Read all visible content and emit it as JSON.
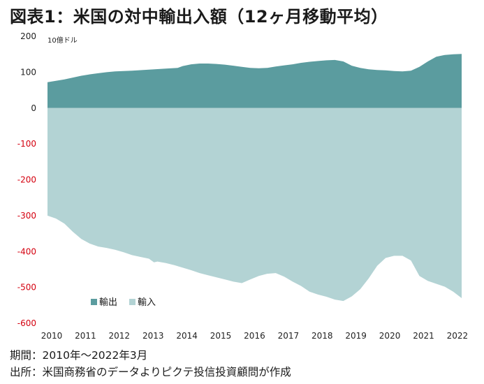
{
  "header": {
    "title": "図表1：米国の対中輸出入額（12ヶ月移動平均）",
    "unit": "10億ドル"
  },
  "footer": {
    "period": "期間：2010年～2022年3月",
    "source": "出所：米国商務省のデータよりピクテ投信投資顧問が作成"
  },
  "colors": {
    "export": "#5b9c9f",
    "import": "#b3d3d4",
    "negative_tick": "#d4000f",
    "positive_tick": "#222222"
  },
  "chart_data": {
    "type": "area",
    "title": "図表1：米国の対中輸出入額（12ヶ月移動平均）",
    "ylabel": "10億ドル",
    "xlabel": "",
    "ylim": [
      -600,
      200
    ],
    "yticks": [
      200,
      100,
      0,
      -100,
      -200,
      -300,
      -400,
      -500,
      -600
    ],
    "ytick_labels": [
      "200",
      "100",
      "0",
      "-100",
      "-200",
      "-300",
      "-400",
      "-500",
      "-600"
    ],
    "xlim": [
      2010,
      2022.25
    ],
    "xticks": [
      2010,
      2011,
      2012,
      2013,
      2014,
      2015,
      2016,
      2017,
      2018,
      2019,
      2020,
      2021,
      2022
    ],
    "xtick_labels": [
      "2010",
      "2011",
      "2012",
      "2013",
      "2014",
      "2015",
      "2016",
      "2017",
      "2018",
      "2019",
      "2020",
      "2021",
      "2022"
    ],
    "grid": false,
    "legend_position": "bottom-left",
    "series": [
      {
        "name": "輸出",
        "x": [
          2010.0,
          2010.25,
          2010.5,
          2010.75,
          2011.0,
          2011.25,
          2011.5,
          2011.75,
          2012.0,
          2012.5,
          2013.0,
          2013.5,
          2013.85,
          2014.0,
          2014.25,
          2014.5,
          2014.75,
          2015.0,
          2015.25,
          2015.5,
          2015.75,
          2016.0,
          2016.25,
          2016.5,
          2016.75,
          2017.0,
          2017.25,
          2017.5,
          2017.75,
          2018.0,
          2018.25,
          2018.5,
          2018.75,
          2019.0,
          2019.25,
          2019.5,
          2019.75,
          2020.0,
          2020.25,
          2020.5,
          2020.75,
          2021.0,
          2021.25,
          2021.5,
          2021.75,
          2022.0,
          2022.25
        ],
        "values": [
          72,
          76,
          80,
          85,
          90,
          94,
          97,
          100,
          102,
          104,
          107,
          110,
          112,
          117,
          122,
          124,
          124,
          123,
          121,
          118,
          115,
          112,
          111,
          112,
          116,
          119,
          122,
          126,
          129,
          131,
          133,
          134,
          130,
          118,
          112,
          108,
          106,
          105,
          103,
          102,
          104,
          115,
          130,
          143,
          148,
          150,
          151
        ]
      },
      {
        "name": "輸入",
        "x": [
          2010.0,
          2010.25,
          2010.5,
          2010.75,
          2011.0,
          2011.25,
          2011.5,
          2011.75,
          2012.0,
          2012.25,
          2012.5,
          2012.75,
          2013.0,
          2013.15,
          2013.25,
          2013.5,
          2013.75,
          2014.0,
          2014.25,
          2014.5,
          2014.75,
          2015.0,
          2015.25,
          2015.5,
          2015.75,
          2016.0,
          2016.25,
          2016.5,
          2016.75,
          2017.0,
          2017.25,
          2017.5,
          2017.75,
          2018.0,
          2018.25,
          2018.5,
          2018.75,
          2019.0,
          2019.25,
          2019.5,
          2019.75,
          2020.0,
          2020.25,
          2020.5,
          2020.75,
          2021.0,
          2021.25,
          2021.5,
          2021.75,
          2022.0,
          2022.25
        ],
        "values": [
          -300,
          -308,
          -322,
          -345,
          -365,
          -378,
          -386,
          -390,
          -395,
          -402,
          -410,
          -415,
          -420,
          -430,
          -428,
          -432,
          -438,
          -445,
          -452,
          -460,
          -466,
          -472,
          -478,
          -484,
          -488,
          -478,
          -468,
          -462,
          -460,
          -470,
          -484,
          -496,
          -512,
          -520,
          -526,
          -534,
          -538,
          -525,
          -505,
          -475,
          -440,
          -418,
          -412,
          -412,
          -425,
          -468,
          -482,
          -490,
          -498,
          -512,
          -530
        ]
      }
    ]
  }
}
